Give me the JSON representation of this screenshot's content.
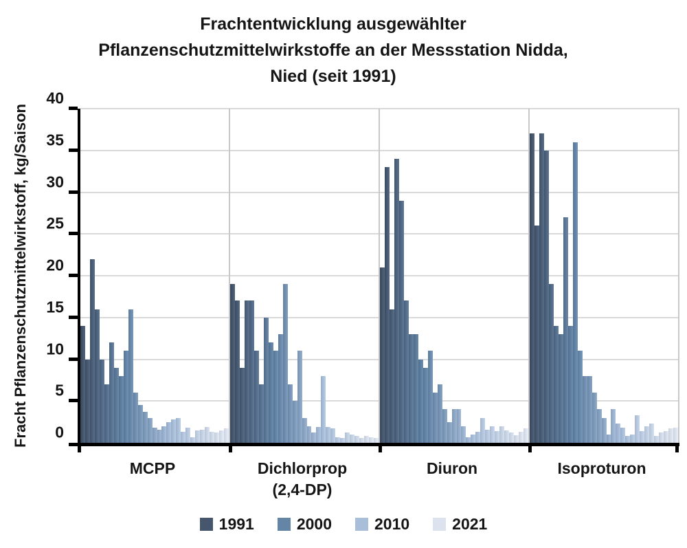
{
  "title": {
    "line1": "Frachtentwicklung ausgewählter",
    "line2": "Pflanzenschutzmittelwirkstoffe an der Messstation Nidda,",
    "line3": "Nied (seit 1991)"
  },
  "y_axis": {
    "label": "Fracht Pflanzenschutzmittelwirkstoff, kg/Saison"
  },
  "legend": {
    "items": [
      {
        "label": "1991",
        "color": "#45566d"
      },
      {
        "label": "2000",
        "color": "#6585a7"
      },
      {
        "label": "2010",
        "color": "#a9bed9"
      },
      {
        "label": "2021",
        "color": "#dde3ee"
      }
    ]
  },
  "chart_data": {
    "type": "bar",
    "title": "Frachtentwicklung ausgewählter Pflanzenschutzmittelwirkstoffe an der Messstation Nidda, Nied (seit 1991)",
    "ylabel": "Fracht Pflanzenschutzmittelwirkstoff, kg/Saison",
    "ylim": [
      0,
      40
    ],
    "ytick_step": 5,
    "grid": true,
    "legend_position": "bottom",
    "year_range": [
      1991,
      2021
    ],
    "color_anchors": {
      "1991": "#45566d",
      "2000": "#6585a7",
      "2010": "#a9bed9",
      "2021": "#dde3ee"
    },
    "groups": [
      {
        "label": "MCPP",
        "sublabel": "",
        "values": [
          14,
          10,
          22,
          16,
          10,
          7,
          12,
          9,
          8,
          11,
          16,
          6,
          4.5,
          3.7,
          3,
          1.8,
          1.6,
          2,
          2.5,
          2.8,
          3,
          1.3,
          1.8,
          0.7,
          1.5,
          1.6,
          1.9,
          1.3,
          1.2,
          1.5,
          1.7
        ]
      },
      {
        "label": "Dichlorprop",
        "sublabel": "(2,4-DP)",
        "values": [
          19,
          17,
          9,
          17,
          17,
          11,
          7,
          15,
          12,
          11,
          13,
          19,
          7,
          5,
          11,
          3,
          2,
          1.2,
          1.9,
          8,
          1.9,
          1.7,
          0.7,
          0.6,
          1.2,
          1,
          0.8,
          0.6,
          0.8,
          0.7,
          0.6
        ]
      },
      {
        "label": "Diuron",
        "sublabel": "",
        "values": [
          21,
          33,
          16,
          34,
          29,
          17,
          13,
          13,
          10,
          9,
          11,
          6,
          7,
          4,
          2.5,
          4,
          4,
          2,
          0.7,
          1,
          1.3,
          3,
          1.6,
          2,
          1.4,
          2,
          1.5,
          1.2,
          0.9,
          1.3,
          1.7
        ]
      },
      {
        "label": "Isoproturon",
        "sublabel": "",
        "values": [
          37,
          26,
          37,
          35,
          19,
          14,
          13,
          27,
          14,
          36,
          11,
          8,
          8,
          6,
          4,
          3,
          1,
          4,
          2.3,
          1.8,
          0.8,
          1,
          3.3,
          1.4,
          2,
          2.3,
          0.8,
          1.2,
          1.4,
          1.7,
          1.8
        ]
      }
    ]
  }
}
